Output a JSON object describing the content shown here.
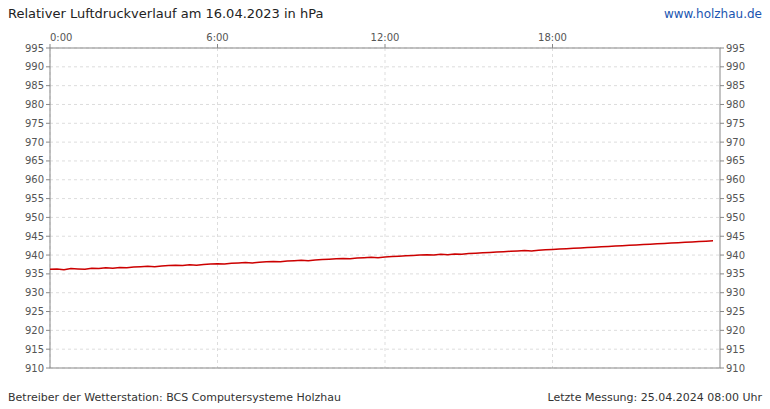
{
  "chart_data": {
    "type": "line",
    "title": "Relativer Luftdruckverlauf am 16.04.2023 in hPa",
    "annotations": [
      "www.holzhau.de",
      "Betreiber der Wetterstation: BCS Computersysteme Holzhau",
      "Letzte Messung: 25.04.2024 08:00 Uhr"
    ],
    "x": [
      0.0,
      0.25,
      0.5,
      0.75,
      1.0,
      1.25,
      1.5,
      1.75,
      2.0,
      2.25,
      2.5,
      2.75,
      3.0,
      3.25,
      3.5,
      3.75,
      4.0,
      4.25,
      4.5,
      4.75,
      5.0,
      5.25,
      5.5,
      5.75,
      6.0,
      6.25,
      6.5,
      6.75,
      7.0,
      7.25,
      7.5,
      7.75,
      8.0,
      8.25,
      8.5,
      8.75,
      9.0,
      9.25,
      9.5,
      9.75,
      10.0,
      10.25,
      10.5,
      10.75,
      11.0,
      11.25,
      11.5,
      11.75,
      12.0,
      12.25,
      12.5,
      12.75,
      13.0,
      13.25,
      13.5,
      13.75,
      14.0,
      14.25,
      14.5,
      14.75,
      15.0,
      15.25,
      15.5,
      15.75,
      16.0,
      16.25,
      16.5,
      16.75,
      17.0,
      17.25,
      17.5,
      17.75,
      18.0,
      18.25,
      18.5,
      18.75,
      19.0,
      19.25,
      19.5,
      19.75,
      20.0,
      20.25,
      20.5,
      20.75,
      21.0,
      21.25,
      21.5,
      21.75,
      22.0,
      22.25,
      22.5,
      22.75,
      23.0,
      23.25,
      23.5,
      23.75
    ],
    "values": [
      936.2,
      936.3,
      936.1,
      936.4,
      936.3,
      936.2,
      936.5,
      936.4,
      936.6,
      936.5,
      936.7,
      936.6,
      936.8,
      936.9,
      937.0,
      936.9,
      937.1,
      937.2,
      937.3,
      937.2,
      937.4,
      937.3,
      937.5,
      937.6,
      937.7,
      937.6,
      937.8,
      937.9,
      938.0,
      937.9,
      938.1,
      938.2,
      938.3,
      938.2,
      938.4,
      938.5,
      938.6,
      938.5,
      938.7,
      938.8,
      938.9,
      939.0,
      939.1,
      939.0,
      939.2,
      939.3,
      939.4,
      939.3,
      939.5,
      939.6,
      939.7,
      939.8,
      939.9,
      940.0,
      940.1,
      940.0,
      940.2,
      940.1,
      940.3,
      940.2,
      940.4,
      940.5,
      940.6,
      940.7,
      940.8,
      940.9,
      941.0,
      941.1,
      941.2,
      941.1,
      941.3,
      941.4,
      941.5,
      941.6,
      941.7,
      941.8,
      941.9,
      942.0,
      942.1,
      942.2,
      942.3,
      942.4,
      942.5,
      942.6,
      942.7,
      942.8,
      942.9,
      943.0,
      943.1,
      943.2,
      943.3,
      943.4,
      943.5,
      943.6,
      943.7,
      943.8
    ],
    "color": "#cc0000",
    "xlim": [
      0,
      24
    ],
    "xticks": [
      {
        "value": 0,
        "label": "0:00"
      },
      {
        "value": 6,
        "label": "6:00"
      },
      {
        "value": 12,
        "label": "12:00"
      },
      {
        "value": 18,
        "label": "18:00"
      }
    ],
    "ylim": [
      910,
      995
    ],
    "yticks": [
      910,
      915,
      920,
      925,
      930,
      935,
      940,
      945,
      950,
      955,
      960,
      965,
      970,
      975,
      980,
      985,
      990,
      995
    ],
    "y2lim": [
      910,
      995
    ],
    "y2ticks": [
      910,
      915,
      920,
      925,
      930,
      935,
      940,
      945,
      950,
      955,
      960,
      965,
      970,
      975,
      980,
      985,
      990,
      995
    ],
    "grid": true
  }
}
